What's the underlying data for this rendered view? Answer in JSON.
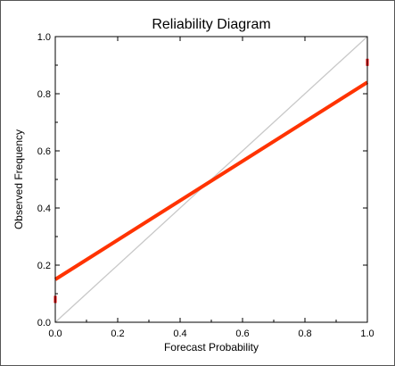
{
  "chart_data": {
    "type": "line",
    "title": "Reliability Diagram",
    "xlabel": "Forecast Probability",
    "ylabel": "Observed Frequency",
    "xlim": [
      0.0,
      1.0
    ],
    "ylim": [
      0.0,
      1.0
    ],
    "xticks": [
      "0.0",
      "0.2",
      "0.4",
      "0.6",
      "0.8",
      "1.0"
    ],
    "yticks": [
      "0.0",
      "0.2",
      "0.4",
      "0.6",
      "0.8",
      "1.0"
    ],
    "grid": false,
    "legend": "none",
    "series": [
      {
        "role": "perfect-reliability",
        "x": [
          0.0,
          1.0
        ],
        "y": [
          0.0,
          1.0
        ],
        "color": "#c8c8c8"
      },
      {
        "role": "reliability-fit",
        "x": [
          0.0,
          1.0
        ],
        "y": [
          0.15,
          0.84
        ],
        "color": "#ff3300"
      }
    ],
    "edge_markers": [
      {
        "x": 0.0,
        "y": 0.08,
        "color": "#ff0000"
      },
      {
        "x": 1.0,
        "y": 0.91,
        "color": "#ff0000"
      }
    ]
  }
}
